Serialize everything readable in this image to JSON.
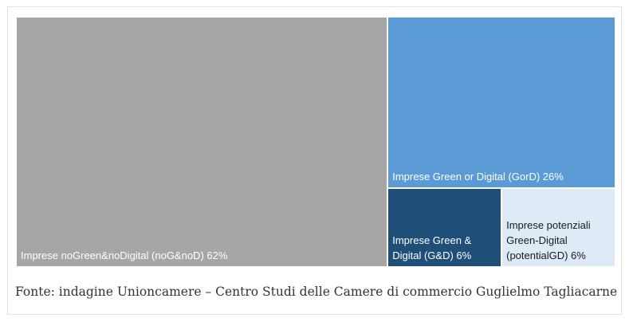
{
  "chart_data": {
    "type": "treemap",
    "title": "",
    "items": [
      {
        "label": "Imprese noGreen&noDigital (noG&noD) 62%",
        "value": 62,
        "color": "#a6a6a6",
        "text_color": "#ffffff"
      },
      {
        "label": "Imprese Green or Digital (GorD) 26%",
        "value": 26,
        "color": "#5b9bd5",
        "text_color": "#ffffff"
      },
      {
        "label": "Imprese Green &\nDigital (G&D) 6%",
        "value": 6,
        "color": "#1f4e79",
        "text_color": "#ffffff"
      },
      {
        "label": "Imprese potenziali\nGreen-Digital\n(potentialGD) 6%",
        "value": 6,
        "color": "#deebf7",
        "text_color": "#1a1a1a"
      }
    ]
  },
  "caption": "Fonte: indagine Unioncamere – Centro Studi delle Camere di commercio Guglielmo Tagliacarne"
}
